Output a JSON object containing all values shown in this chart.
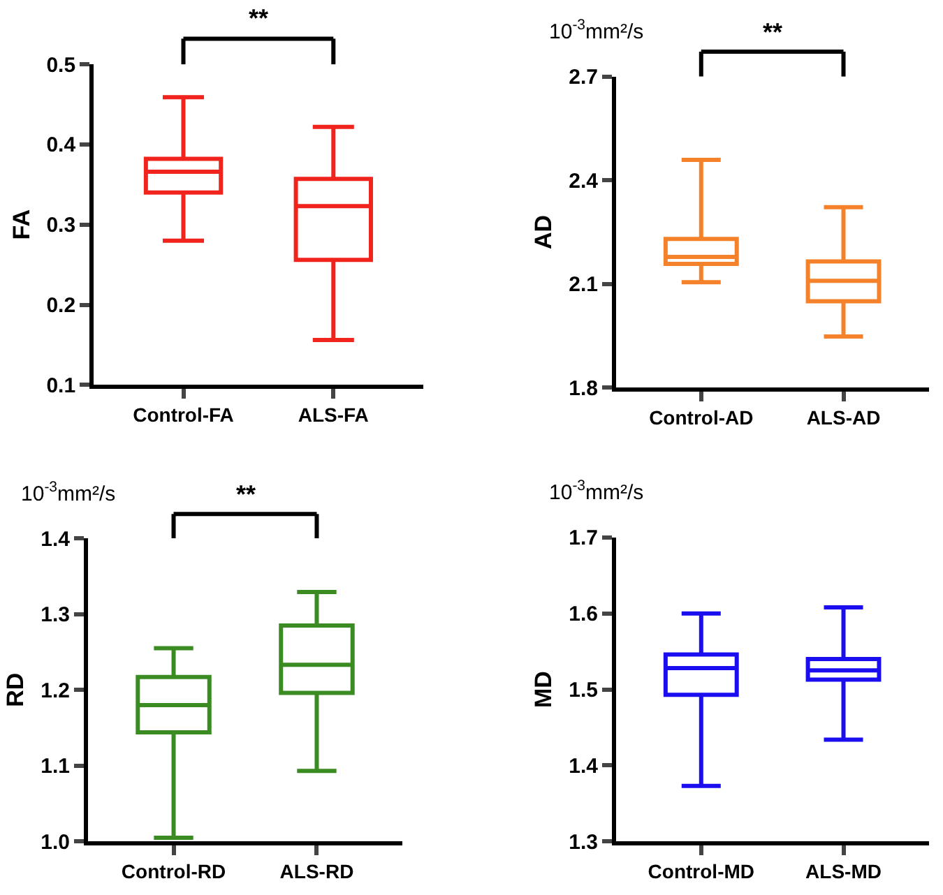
{
  "chart_data": [
    {
      "type": "box",
      "categories": [
        "Control-FA",
        "ALS-FA"
      ],
      "ylabel": "FA",
      "color": "#f0241c",
      "ylim": [
        0.1,
        0.5
      ],
      "yticks": [
        0.1,
        0.2,
        0.3,
        0.4,
        0.5
      ],
      "annotations": [
        "**"
      ],
      "boxes": [
        {
          "low": 0.28,
          "q1": 0.34,
          "median": 0.366,
          "q3": 0.382,
          "high": 0.459
        },
        {
          "low": 0.156,
          "q1": 0.256,
          "median": 0.323,
          "q3": 0.357,
          "high": 0.422
        }
      ]
    },
    {
      "type": "box",
      "categories": [
        "Control-AD",
        "ALS-AD"
      ],
      "ylabel": "AD",
      "subtitle": "10$^{-3}$mm²/s",
      "color": "#f5822a",
      "ylim": [
        1.8,
        2.7
      ],
      "yticks": [
        1.8,
        2.1,
        2.4,
        2.7
      ],
      "annotations": [
        "**"
      ],
      "boxes": [
        {
          "low": 2.105,
          "q1": 2.158,
          "median": 2.178,
          "q3": 2.23,
          "high": 2.459
        },
        {
          "low": 1.948,
          "q1": 2.05,
          "median": 2.109,
          "q3": 2.165,
          "high": 2.322
        }
      ]
    },
    {
      "type": "box",
      "categories": [
        "Control-RD",
        "ALS-RD"
      ],
      "ylabel": "RD",
      "subtitle": "10$^{-3}$mm²/s",
      "color": "#3a8c22",
      "ylim": [
        1.0,
        1.4
      ],
      "yticks": [
        {
          "value": 1.0,
          "label": "1.0"
        },
        1.1,
        1.2,
        1.3,
        1.4
      ],
      "annotations": [
        "**"
      ],
      "boxes": [
        {
          "low": 1.005,
          "q1": 1.144,
          "median": 1.18,
          "q3": 1.217,
          "high": 1.255
        },
        {
          "low": 1.093,
          "q1": 1.196,
          "median": 1.233,
          "q3": 1.285,
          "high": 1.329
        }
      ]
    },
    {
      "type": "box",
      "categories": [
        "Control-MD",
        "ALS-MD"
      ],
      "ylabel": "MD",
      "subtitle": "10$^{-3}$mm²/s",
      "color": "#1a0df0",
      "ylim": [
        1.3,
        1.7
      ],
      "yticks": [
        1.3,
        1.4,
        1.5,
        1.6,
        1.7
      ],
      "boxes": [
        {
          "low": 1.373,
          "q1": 1.493,
          "median": 1.528,
          "q3": 1.546,
          "high": 1.6
        },
        {
          "low": 1.434,
          "q1": 1.513,
          "median": 1.525,
          "q3": 1.54,
          "high": 1.608
        }
      ]
    }
  ]
}
